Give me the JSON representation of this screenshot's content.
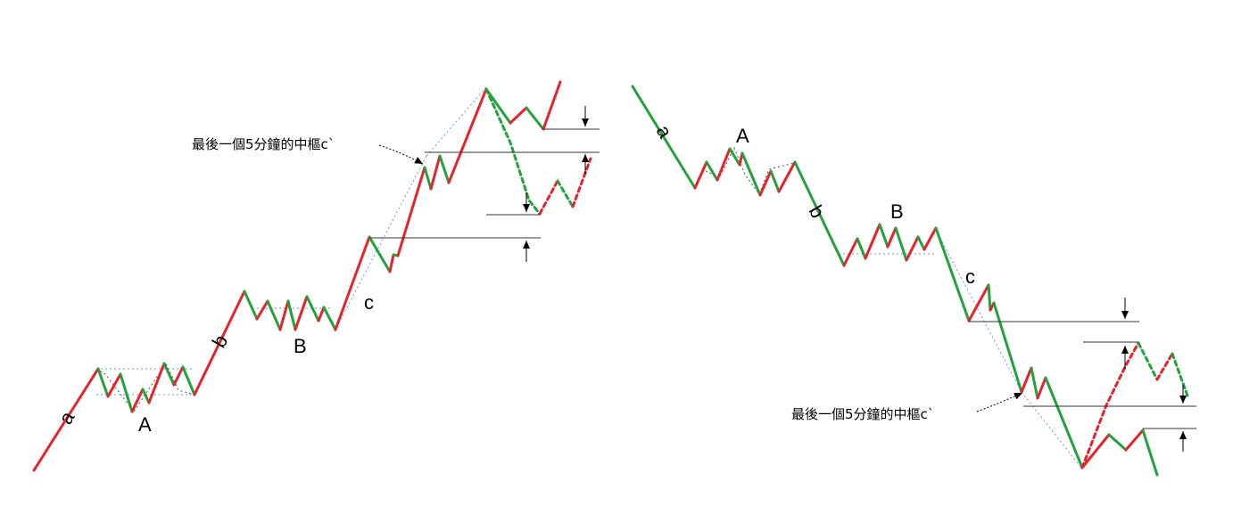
{
  "colors": {
    "up": "#e8222a",
    "down": "#22a23c",
    "guide": "#6b97d6",
    "level": "#333333",
    "text": "#000000"
  },
  "left_panel": {
    "wave_a": "a",
    "wave_b": "b",
    "wave_c": "c",
    "label_A": "A",
    "label_B": "B",
    "note": "最後一個5分鐘的中樞c`"
  },
  "right_panel": {
    "wave_a": "a",
    "wave_b": "b",
    "wave_c": "c",
    "label_A": "A",
    "label_B": "B",
    "note": "最後一個5分鐘的中樞c`"
  }
}
